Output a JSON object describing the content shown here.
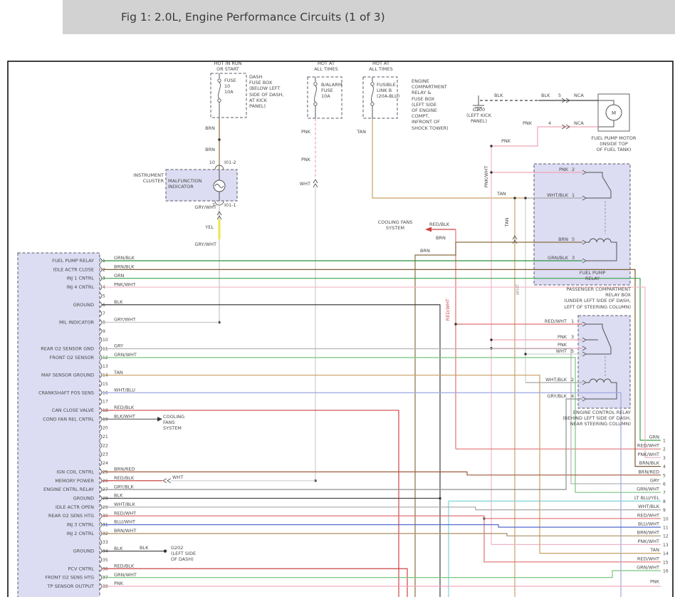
{
  "title": "Fig 1: 2.0L, Engine Performance Circuits (1 of 3)",
  "colors": {
    "header_bg": "#d2d2d2",
    "component_fill": "#dcdcf2",
    "GRN": "#3fa34d",
    "GRN/BLK": "#2e8f3e",
    "GRN/WHT": "#7cc47f",
    "BRN": "#8a6d3f",
    "BRN/BLK": "#7a5f36",
    "BRN/RED": "#a05a3c",
    "BRN/WHT": "#ab8d62",
    "PNK": "#f2a3b3",
    "PNK/WHT": "#f0b6c4",
    "TAN": "#c9a063",
    "WHT": "#cfcfcf",
    "WHT/BLK": "#a8a8a8",
    "WHT/BLU": "#9fa8e0",
    "GRY": "#b5b5b5",
    "GRY/WHT": "#c6c6c6",
    "GRY/BLK": "#8f8f8f",
    "RED/BLK": "#cc4444",
    "RED/WHT": "#e07070",
    "YEL": "#efe34c",
    "BLK": "#404040",
    "BLK/WHT": "#606060",
    "BLU/WHT": "#5468cc",
    "LT BLU/YEL": "#7fd2d8"
  },
  "top": {
    "hot_run": "HOT IN RUN\nOR START",
    "hot_all_1": "HOT AT\nALL TIMES",
    "hot_all_2": "HOT AT\nALL TIMES",
    "fuse_dash": "FUSE\n10\n10A",
    "fuse_dash_note": "DASH\nFUSE BOX\n(BELOW LEFT\nSIDE OF DASH,\nAT KICK\nPANEL)",
    "fuse_balarm": "B/ALARM\nFUSE\n10A",
    "fusible_link": "FUSIBLE\nLINK B\n(20A-BLU)",
    "engine_box_note": "ENGINE\nCOMPARTMENT\nRELAY &\nFUSE BOX\n(LEFT SIDE\nOF ENGINE\nCOMPT,\nINFRONT OF\nSHOCK TOWER)",
    "g200": "G200\n(LEFT KICK\nPANEL)",
    "g202": "G202\n(LEFT SIDE\nOF DASH)",
    "fuel_pump_motor": "FUEL PUMP MOTOR\n(INSIDE TOP\nOF FUEL TANK)",
    "motor_m": "M",
    "instrument_cluster": "INSTRUMENT\nCLUSTER",
    "malfunction_indicator": "MALFUNCTION\nINDICATOR",
    "cooling_fans_top": "COOLING FANS\nSYSTEM",
    "cooling_fans_row": "COOLING\nFANS\nSYSTEM",
    "fpr_name": "FUEL PUMP\nRELAY",
    "fpr_loc": "PASSENGER COMPARTMENT\nRELAY BOX\n(UNDER LEFT SIDE OF DASH,\nLEFT OF STEERING COLUMN)",
    "ecr_name": "ENGINE CONTROL RELAY\n(BEHIND LEFT SIDE OF DASH,\nNEAR STEERING COLUMN)"
  },
  "float": {
    "brn_1": "BRN",
    "brn_2": "BRN",
    "pnk_1": "PNK",
    "pnk_2": "PNK",
    "wht_1": "WHT",
    "tan_1": "TAN",
    "grywht_1": "GRY/WHT",
    "yel_1": "YEL",
    "grywht_2": "GRY/WHT",
    "blk_1": "BLK",
    "blk_2": "BLK",
    "nca_pin5": "5",
    "nca_1": "NCA",
    "pnk_3": "PNK",
    "pnk_4": "PNK",
    "nca_pin4": "4",
    "nca_2": "NCA",
    "tan_2": "TAN",
    "redblk_1": "RED/BLK",
    "brn_3": "BRN",
    "brn_4": "BRN",
    "pin10": "10",
    "conn_i012": "I01-2",
    "pin7": "7",
    "conn_i011": "I01-1",
    "fpr_p2": "PNK",
    "fpr_p2n": "2",
    "fpr_p1": "WHT/BLK",
    "fpr_p1n": "1",
    "fpr_p5": "BRN",
    "fpr_p5n": "5",
    "fpr_p3": "GRN/BLK",
    "fpr_p3n": "3",
    "ecr_p1": "RED/WHT",
    "ecr_p1n": "1",
    "ecr_p3": "PNK",
    "ecr_p3n": "3",
    "ecr_pnk": "PNK",
    "ecr_p5": "WHT",
    "ecr_p5n": "5",
    "ecr_p2": "WHT/BLK",
    "ecr_p2n": "2",
    "ecr_p4": "GRY/BLK",
    "ecr_p4n": "4",
    "row26_wht": "WHT",
    "row34_blk": "BLK",
    "pnkwht_rot": "PNK/WHT",
    "tan_rot": "TAN",
    "wht_rot": "WHT",
    "redwht_rot": "RED/WHT"
  },
  "left_connector": {
    "pins": [
      {
        "n": "1",
        "wire": "GRN/BLK",
        "fn": "FUEL PUMP RELAY"
      },
      {
        "n": "2",
        "wire": "BRN/BLK",
        "fn": "IDLE ACTR CLOSE"
      },
      {
        "n": "3",
        "wire": "GRN",
        "fn": "INJ 1 CNTRL"
      },
      {
        "n": "4",
        "wire": "PNK/WHT",
        "fn": "INJ 4 CNTRL"
      },
      {
        "n": "5",
        "wire": "",
        "fn": ""
      },
      {
        "n": "6",
        "wire": "BLK",
        "fn": "GROUND"
      },
      {
        "n": "7",
        "wire": "",
        "fn": ""
      },
      {
        "n": "8",
        "wire": "GRY/WHT",
        "fn": "MIL INDICATOR"
      },
      {
        "n": "9",
        "wire": "",
        "fn": ""
      },
      {
        "n": "10",
        "wire": "",
        "fn": ""
      },
      {
        "n": "11",
        "wire": "GRY",
        "fn": "REAR O2 SENSOR GND"
      },
      {
        "n": "12",
        "wire": "GRN/WHT",
        "fn": "FRONT O2 SENSOR"
      },
      {
        "n": "13",
        "wire": "",
        "fn": ""
      },
      {
        "n": "14",
        "wire": "TAN",
        "fn": "MAF SENSOR GROUND"
      },
      {
        "n": "15",
        "wire": "",
        "fn": ""
      },
      {
        "n": "16",
        "wire": "WHT/BLU",
        "fn": "CRANKSHAFT POS SENS"
      },
      {
        "n": "17",
        "wire": "",
        "fn": ""
      },
      {
        "n": "18",
        "wire": "RED/BLK",
        "fn": "CAN CLOSE VALVE"
      },
      {
        "n": "19",
        "wire": "BLK/WHT",
        "fn": "COND FAN REL CNTRL"
      },
      {
        "n": "20",
        "wire": "",
        "fn": ""
      },
      {
        "n": "21",
        "wire": "",
        "fn": ""
      },
      {
        "n": "22",
        "wire": "",
        "fn": ""
      },
      {
        "n": "23",
        "wire": "",
        "fn": ""
      },
      {
        "n": "24",
        "wire": "",
        "fn": ""
      },
      {
        "n": "25",
        "wire": "BRN/RED",
        "fn": "IGN COIL CNTRL"
      },
      {
        "n": "26",
        "wire": "RED/BLK",
        "fn": "MEMORY POWER"
      },
      {
        "n": "27",
        "wire": "GRY/BLK",
        "fn": "ENGINE CNTRL RELAY"
      },
      {
        "n": "28",
        "wire": "BLK",
        "fn": "GROUND"
      },
      {
        "n": "29",
        "wire": "WHT/BLK",
        "fn": "IDLE ACTR OPEN"
      },
      {
        "n": "30",
        "wire": "RED/WHT",
        "fn": "REAR O2 SENS HTG"
      },
      {
        "n": "31",
        "wire": "BLU/WHT",
        "fn": "INJ 3 CNTRL"
      },
      {
        "n": "32",
        "wire": "BRN/WHT",
        "fn": "INJ 2 CNTRL"
      },
      {
        "n": "33",
        "wire": "",
        "fn": ""
      },
      {
        "n": "34",
        "wire": "BLK",
        "fn": "GROUND"
      },
      {
        "n": "35",
        "wire": "",
        "fn": ""
      },
      {
        "n": "36",
        "wire": "RED/BLK",
        "fn": "PCV CNTRL"
      },
      {
        "n": "37",
        "wire": "GRN/WHT",
        "fn": "FRONT O2 SENS HTG"
      },
      {
        "n": "38",
        "wire": "PNK",
        "fn": "TP SENSOR OUTPUT"
      }
    ]
  },
  "right_wires": [
    {
      "n": "1",
      "wire": "GRN"
    },
    {
      "n": "2",
      "wire": "RED/WHT"
    },
    {
      "n": "3",
      "wire": "PNK/WHT"
    },
    {
      "n": "4",
      "wire": "BRN/BLK"
    },
    {
      "n": "5",
      "wire": "BRN/RED"
    },
    {
      "n": "6",
      "wire": "GRY"
    },
    {
      "n": "7",
      "wire": "GRN/WHT"
    },
    {
      "n": "8",
      "wire": "LT BLU/YEL"
    },
    {
      "n": "9",
      "wire": "WHT/BLK"
    },
    {
      "n": "10",
      "wire": "RED/WHT"
    },
    {
      "n": "11",
      "wire": "BLU/WHT"
    },
    {
      "n": "12",
      "wire": "BRN/WHT"
    },
    {
      "n": "13",
      "wire": "PNK/WHT"
    },
    {
      "n": "14",
      "wire": "TAN"
    },
    {
      "n": "15",
      "wire": "RED/WHT"
    },
    {
      "n": "16",
      "wire": "GRN/WHT"
    },
    {
      "n": "",
      "wire": "PNK"
    }
  ]
}
